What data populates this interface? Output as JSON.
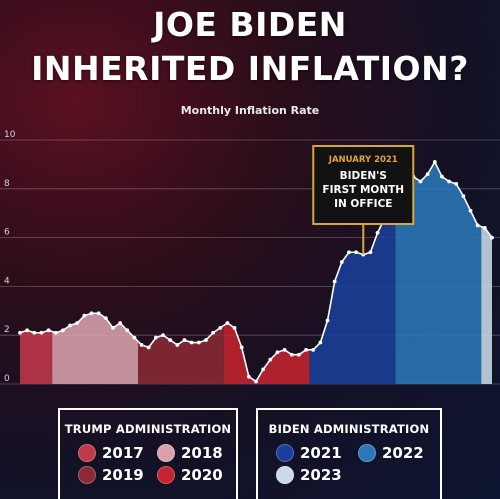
{
  "header": {
    "title_line1": "JOE BIDEN",
    "title_line2": "INHERITED INFLATION?",
    "subtitle": "Monthly Inflation Rate"
  },
  "annotation": {
    "date": "JANUARY 2021",
    "line1": "BIDEN'S",
    "line2": "FIRST MONTH",
    "line3": "IN OFFICE",
    "x_index": 48
  },
  "legend": {
    "trump_title": "TRUMP ADMINISTRATION",
    "biden_title": "BIDEN ADMINISTRATION",
    "trump_items": [
      {
        "label": "2017",
        "color": "#c0394a"
      },
      {
        "label": "2018",
        "color": "#d9a2ad"
      },
      {
        "label": "2019",
        "color": "#8a2a36"
      },
      {
        "label": "2020",
        "color": "#c4232f"
      }
    ],
    "biden_items": [
      {
        "label": "2021",
        "color": "#1a3f9a"
      },
      {
        "label": "2022",
        "color": "#2a78b8"
      },
      {
        "label": "2023",
        "color": "#c9dbe8"
      }
    ]
  },
  "chart_data": {
    "type": "area",
    "title": "Monthly Inflation Rate",
    "ylim": [
      0,
      10
    ],
    "yticks": [
      0,
      2,
      4,
      6,
      8,
      10
    ],
    "grid": true,
    "x_start": "2017-01",
    "series": [
      {
        "name": "2017",
        "color": "#c0394a",
        "values": [
          2.1,
          2.2,
          2.1,
          2.1,
          2.2
        ]
      },
      {
        "name": "2018",
        "color": "#d9a2ad",
        "values": [
          2.1,
          2.2,
          2.4,
          2.5,
          2.8,
          2.9,
          2.9,
          2.7,
          2.3,
          2.5,
          2.2,
          1.9
        ]
      },
      {
        "name": "2019",
        "color": "#8a2a36",
        "values": [
          1.6,
          1.5,
          1.9,
          2.0,
          1.8,
          1.6,
          1.8,
          1.7,
          1.7,
          1.8,
          2.1,
          2.3
        ]
      },
      {
        "name": "2020",
        "color": "#c4232f",
        "values": [
          2.5,
          2.3,
          1.5,
          0.3,
          0.1,
          0.6,
          1.0,
          1.3,
          1.4,
          1.2,
          1.2,
          1.4
        ]
      },
      {
        "name": "2021",
        "color": "#1a3f9a",
        "values": [
          1.4,
          1.7,
          2.6,
          4.2,
          5.0,
          5.4,
          5.4,
          5.3,
          5.4,
          6.2,
          6.8,
          7.0
        ]
      },
      {
        "name": "2022",
        "color": "#2a78b8",
        "values": [
          7.5,
          7.9,
          8.5,
          8.3,
          8.6,
          9.1,
          8.5,
          8.3,
          8.2,
          7.7,
          7.1,
          6.5
        ]
      },
      {
        "name": "2023",
        "color": "#c9dbe8",
        "values": [
          6.4,
          6.0
        ]
      }
    ]
  }
}
